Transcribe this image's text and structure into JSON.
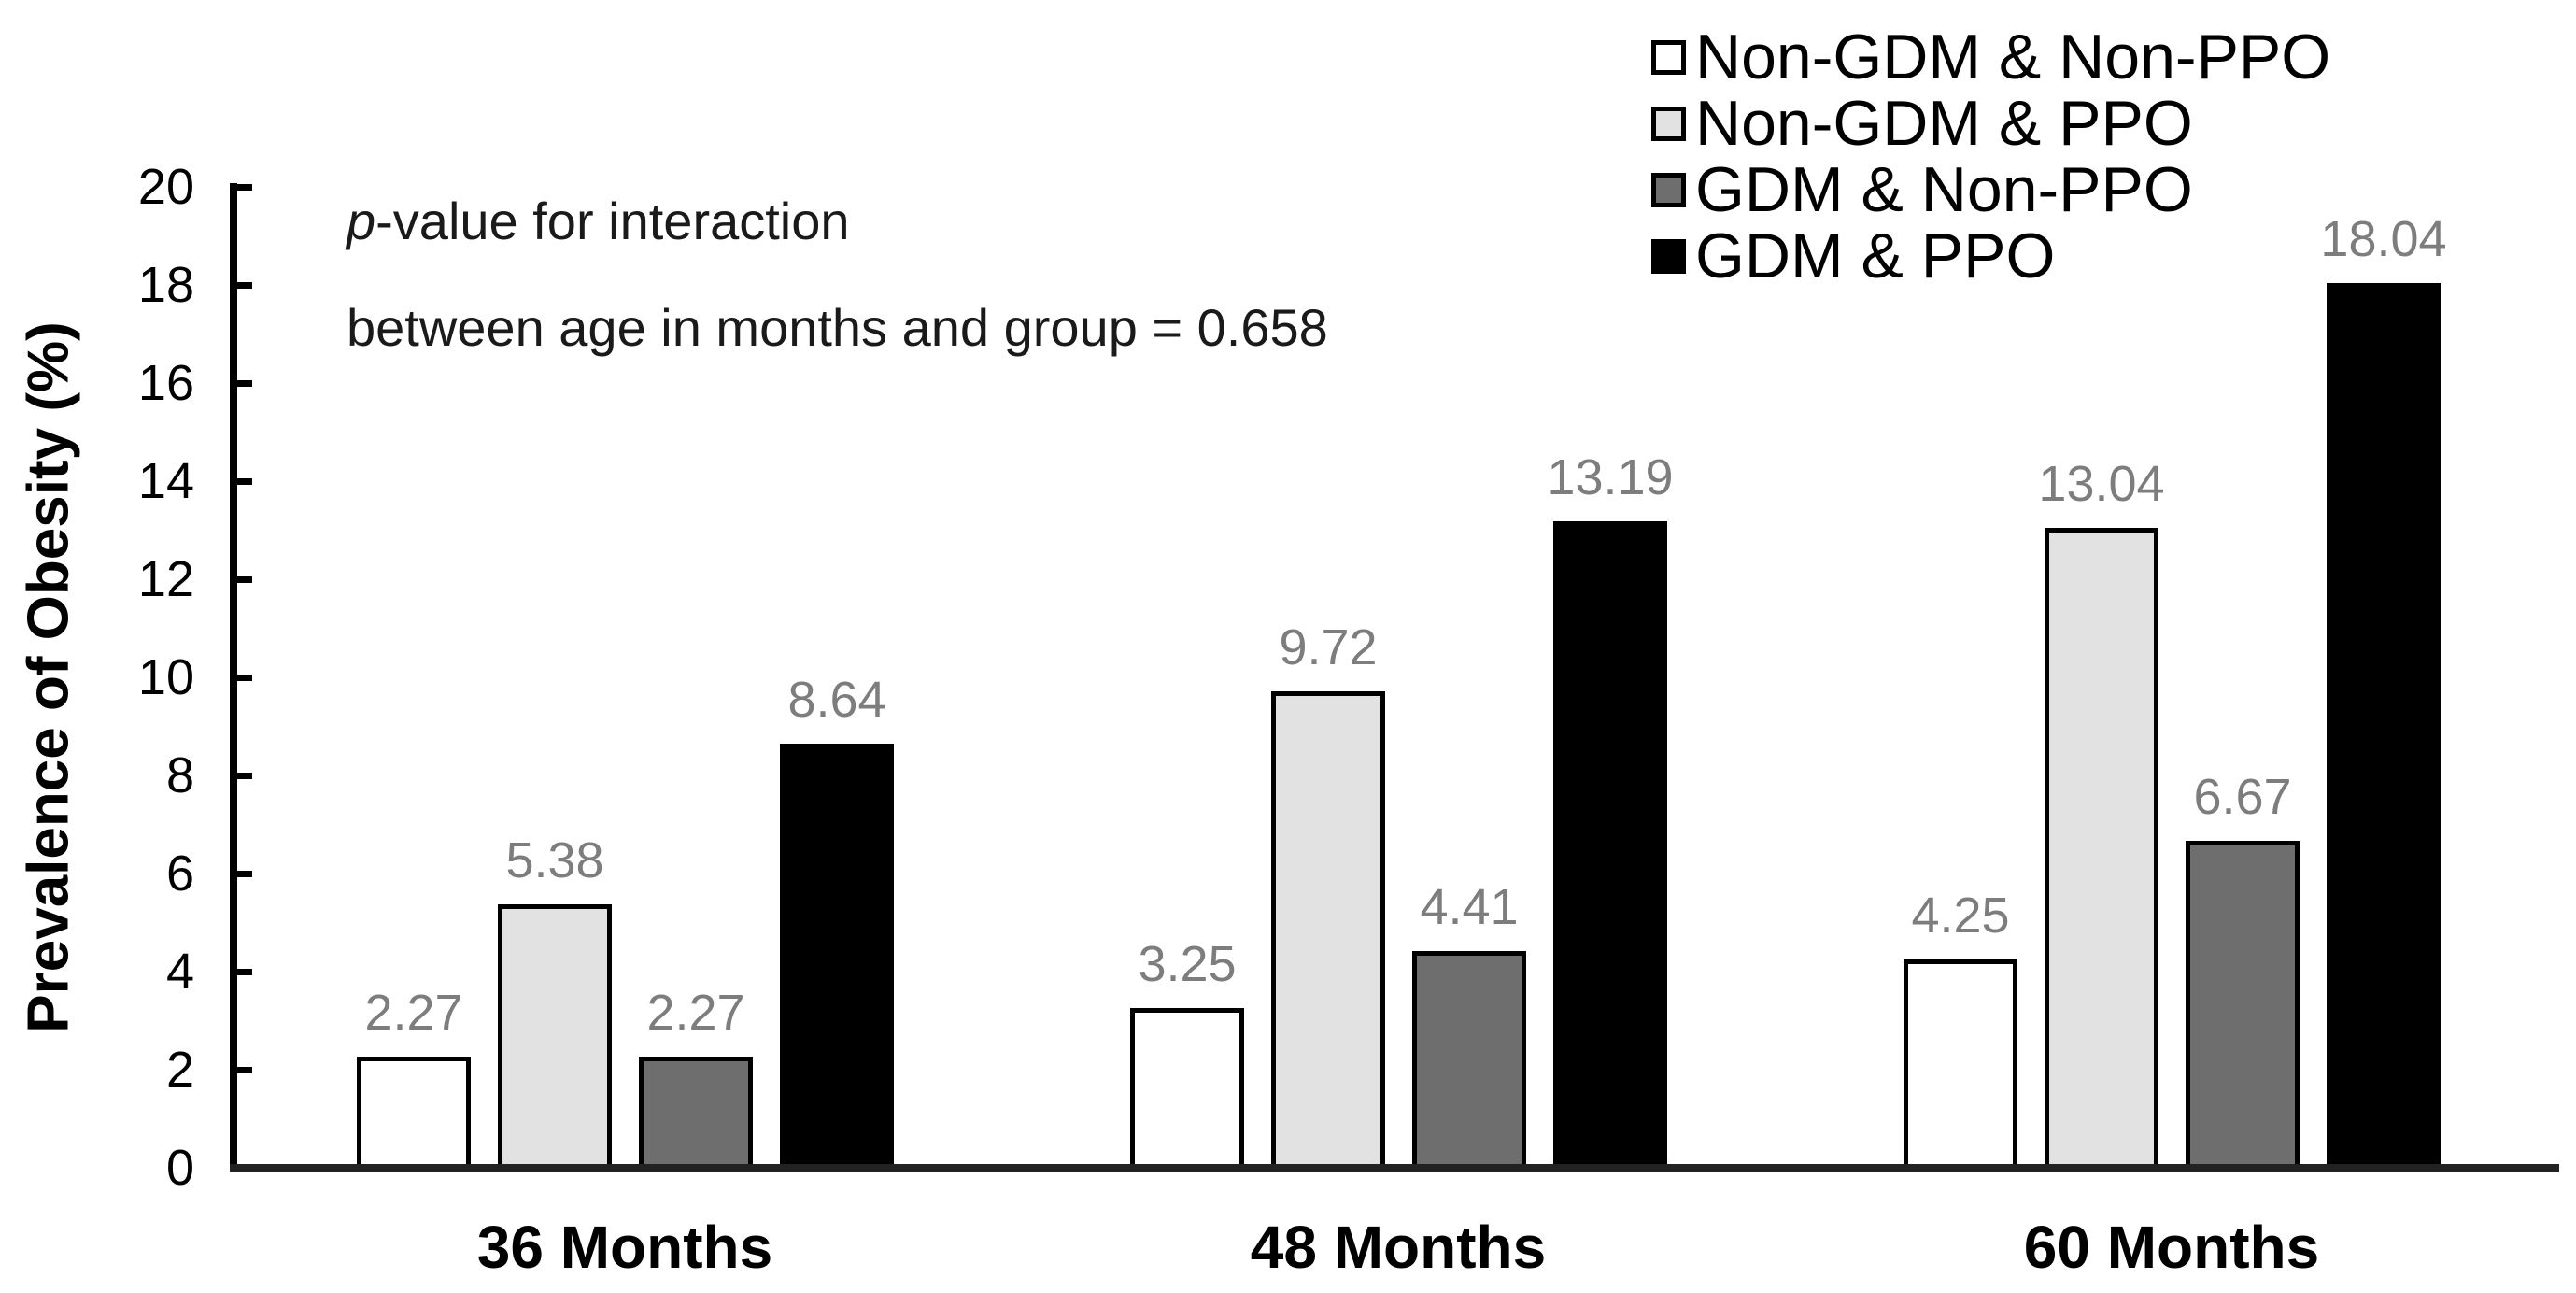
{
  "annotation": {
    "line1_italic": "p",
    "line1_rest": "-value for interaction",
    "line2": "between age in months and group = 0.658"
  },
  "chart_data": {
    "type": "bar",
    "title": "",
    "ylabel": "Prevalence of Obesity (%)",
    "xlabel": "",
    "ylim": [
      0,
      20
    ],
    "yticks": [
      0,
      2,
      4,
      6,
      8,
      10,
      12,
      14,
      16,
      18,
      20
    ],
    "grid": false,
    "legend_position": "top-right",
    "categories": [
      "36 Months",
      "48 Months",
      "60 Months"
    ],
    "series": [
      {
        "name": "Non-GDM & Non-PPO",
        "color": "#ffffff",
        "border_color": "#000000",
        "values": [
          2.27,
          3.25,
          4.25
        ]
      },
      {
        "name": "Non-GDM & PPO",
        "color": "#e2e2e2",
        "border_color": "#000000",
        "values": [
          5.38,
          9.72,
          13.04
        ]
      },
      {
        "name": "GDM & Non-PPO",
        "color": "#6e6e6e",
        "border_color": "#000000",
        "values": [
          2.27,
          4.41,
          6.67
        ]
      },
      {
        "name": "GDM & PPO",
        "color": "#000000",
        "border_color": "#000000",
        "values": [
          8.64,
          13.19,
          18.04
        ]
      }
    ],
    "bar_value_label_decimals": 2,
    "value_label_color": "#7d7d7d",
    "axis_color": "#000000",
    "annotation": "p-value for interaction between age in months and group = 0.658"
  }
}
